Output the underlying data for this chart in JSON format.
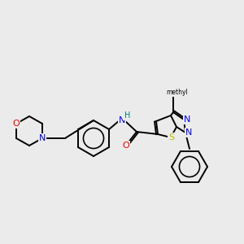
{
  "background_color": "#ebebeb",
  "atom_colors": {
    "C": "#000000",
    "N": "#0000ee",
    "O": "#ee0000",
    "S": "#bbbb00",
    "H": "#008080"
  },
  "bond_color": "#000000",
  "figsize": [
    3.0,
    3.0
  ],
  "dpi": 100
}
